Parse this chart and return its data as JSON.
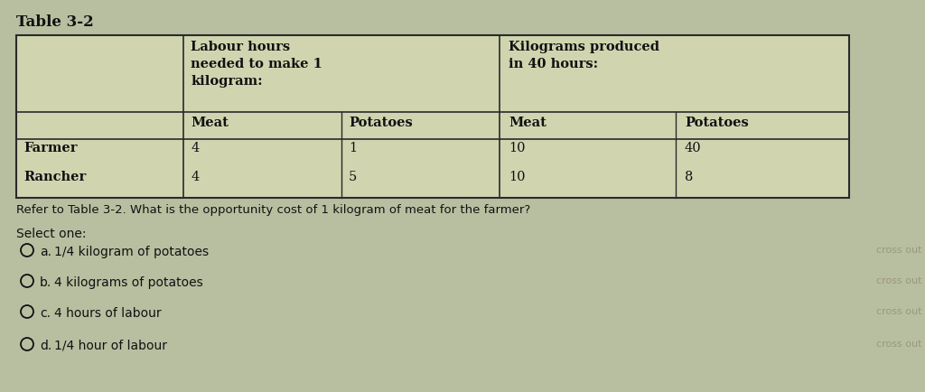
{
  "title": "Table 3-2",
  "bg_outer": "#b8bfa0",
  "bg_inner": "#c8cfa8",
  "table_bg": "#d0d5b0",
  "table_border_color": "#2a2a2a",
  "header1_lines": [
    "Labour hours",
    "needed to make 1",
    "kilogram:"
  ],
  "header2_lines": [
    "Kilograms produced",
    "in 40 hours:"
  ],
  "col_headers": [
    "Meat",
    "Potatoes",
    "Meat",
    "Potatoes"
  ],
  "row_labels": [
    "Farmer",
    "Rancher"
  ],
  "data": [
    [
      "4",
      "1",
      "10",
      "40"
    ],
    [
      "4",
      "5",
      "10",
      "8"
    ]
  ],
  "question": "Refer to Table 3-2. What is the opportunity cost of 1 kilogram of meat for the farmer?",
  "select_label": "Select one:",
  "options": [
    [
      "a.",
      "1/4 kilogram of potatoes"
    ],
    [
      "b.",
      "4 kilograms of potatoes"
    ],
    [
      "c.",
      "4 hours of labour"
    ],
    [
      "d.",
      "1/4 hour of labour"
    ]
  ],
  "cross_out_text": "cross out",
  "font_color": "#111111",
  "cross_color": "#999977",
  "title_fontsize": 12,
  "table_fontsize": 10.5,
  "question_fontsize": 9.5,
  "option_fontsize": 10
}
